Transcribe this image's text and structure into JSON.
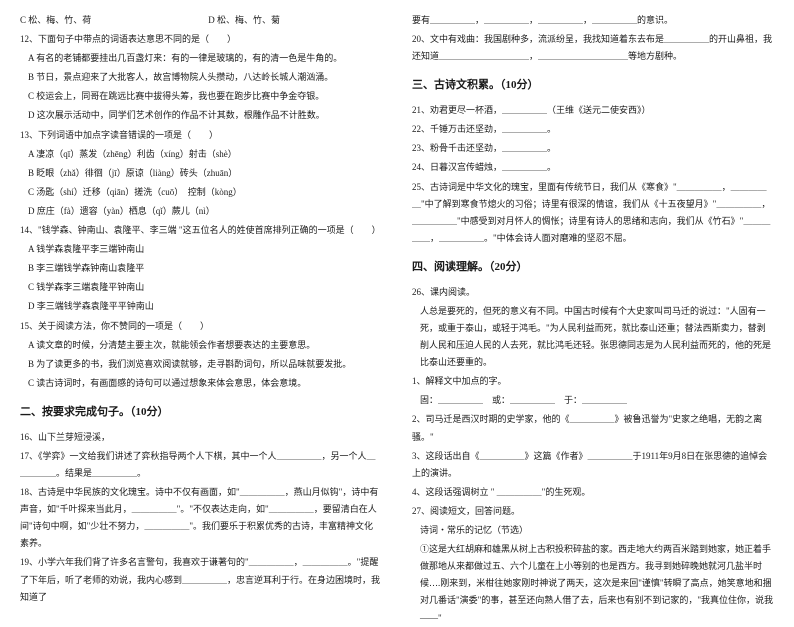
{
  "left": {
    "q11_optC": "C 松、梅、竹、荷",
    "q11_optD": "D 松、梅、竹、菊",
    "q12": "12、下面句子中带点的词语表达意思不同的是（　　）",
    "q12_A": "A 有名的老铺都要挂出几百盏灯来：有的一律是玻璃的，有的清一色是牛角的。",
    "q12_B": "B 节日，景点迎来了大批客人，故宫博物院人头攒动，八达岭长城人潮汹涌。",
    "q12_C": "C 校运会上，同哥在跳远比赛中拔得头筹，我也要在跑步比赛中争金夺银。",
    "q12_D": "D 这次展示活动中，同学们艺术创作的作品不计其数，根雕作品不计胜数。",
    "q13": "13、下列词语中加点字读音错误的一项是（　　）",
    "q13_A": "A 凄凉（qī）蒸发（zhēng）利齿（xíng）射击（shè）",
    "q13_B": "B 眨眼（zhǎ）徘徊（jī）原谅（liàng）砖头（zhuān）",
    "q13_C": "C 汤匙（shí）迁移（qiān）搓洗（cuō）　控制（kòng）",
    "q13_D": "D 庶庄（fà）遗容（yàn）栖息（qǐ）蕨儿（nì）",
    "q14": "14、\"钱学森、钟南山、袁隆平、李三端 \"这五位名人的姓使首席排列正确的一项是（　　）",
    "q14_A": "A 钱学森袁隆平李三端钟南山",
    "q14_B": "B 李三端钱学森钟南山袁隆平",
    "q14_C": "C 钱学森李三端袁隆平钟南山",
    "q14_D": "D 李三端钱学森袁隆平平钟南山",
    "q15": "15、关于阅读方法，你不赞同的一项是（　　）",
    "q15_A": "A 读文章的时候，分清楚主要主次，就能领会作者想要表达的主要意思。",
    "q15_B": "B 为了读更多的书，我们浏览喜欢阅读就够，走寻斟酌词句，所以品味就要发批。",
    "q15_C": "C 读古诗词时，有画面感的诗句可以通过想象来体会意思，体会意境。",
    "s2_title": "二、按要求完成句子。（10分）",
    "q16": "16、山下兰芽短浸溪，",
    "q17": "17、《学弈》一文给我们讲述了弈秋指导两个人下棋，其中一个人＿＿＿＿＿，另一个人＿＿＿＿＿。结果是＿＿＿＿＿。",
    "q18": "18、古诗是中华民族的文化瑰宝。诗中不仅有画面，如\"＿＿＿＿＿，燕山月似钩\"，诗中有声音，如\"千叶探来当此月，＿＿＿＿＿\"。\"不仅表达走向，如\"＿＿＿＿＿，要留清白在人间\"诗句中啊，如\"少壮不努力，＿＿＿＿＿\"。我们要乐于积累优秀的古诗，丰富精神文化素养。",
    "q19": "19、小学六年我们背了许多名言警句，我喜欢于谦著句的\"＿＿＿＿＿，＿＿＿＿＿。\"提醒了下年后，听了老师的劝说，我内心感到＿＿＿＿＿，忠言逆耳利于行。在身边困境时，我知道了"
  },
  "right": {
    "q19_cont": "要有＿＿＿＿＿，＿＿＿＿＿，＿＿＿＿＿，＿＿＿＿＿的意识。",
    "q20": "20、文中有戏曲：我国剧种多，流派纷呈，我找知道着东去布是＿＿＿＿＿的开山鼻祖，我还知道＿＿＿＿＿＿＿＿＿＿，＿＿＿＿＿＿＿＿＿＿等地方剧种。",
    "s3_title": "三、古诗文积累。（10分）",
    "q21": "21、劝君更尽一杯酒，＿＿＿＿＿（王维《送元二使安西》）",
    "q22": "22、千锤万击还坚劲，＿＿＿＿＿。",
    "q23": "23、粉骨千击还坚劲，＿＿＿＿＿。",
    "q24": "24、日暮汉宫传蜡烛，＿＿＿＿＿。",
    "q25": "25、古诗词是中华文化的瑰宝，里面有传统节日，我们从《寒食》\"＿＿＿＿＿，＿＿＿＿＿\"中了解到寒食节熄火的习俗；诗里有很深的情谊，我们从《十五夜望月》\"＿＿＿＿＿，＿＿＿＿＿\"中感受到对月怀人的惆怅；诗里有诗人的思绪和志向，我们从《竹石》\"＿＿＿＿＿，＿＿＿＿＿。\"中体会诗人面对磨难的坚忍不屈。",
    "s4_title": "四、阅读理解。（20分）",
    "q26": "26、课内阅读。",
    "p26_1": "人总是要死的，但死的意义有不同。中国古时候有个大史家叫司马迁的说过：\"人固有一死，或重于泰山，或轻于鸿毛。\"为人民利益而死，就比泰山还重；替法西斯卖力，替剥削人民和压迫人民的人去死，就比鸿毛还轻。张思德同志是为人民利益而死的，他的死是比泰山还要重的。",
    "p26_t1": "1、解释文中加点的字。",
    "p26_blank": "固：＿＿＿＿＿　或：＿＿＿＿＿　于：＿＿＿＿＿",
    "p26_t2": "2、司马迁是西汉时期的史学家，他的《＿＿＿＿＿》被鲁迅誉为\"史家之绝唱，无韵之离骚。\"",
    "p26_t3": "3、这段话出自《＿＿＿＿＿》这篇《作者》＿＿＿＿＿于1911年9月8日在张思德的追悼会上的演讲。",
    "p26_t4": "4、这段话强调树立 \" ＿＿＿＿＿\"的生死观。",
    "q27": "27、阅读短文，回答问题。",
    "p27_title": "诗词・常乐的记忆（节选）",
    "p27_1": "①这是大红胡麻和雄黑从树上古积投积碎盐的家。西走地大约两百米踏到她家，她正着手做那地从来都做过五、六个儿童在上小等别的也是西方。我寻到她碎晚她就河几盐半时候….刚来到，米柑往她家刚时神说了两天，这次是来回\"谨慎\"转瞬了高点，她笑意地和捆对几番话\"演委\"的事，甚至还向熟人借了去，后来也有别不到记家的，\"我真位住你，说我——\""
  }
}
